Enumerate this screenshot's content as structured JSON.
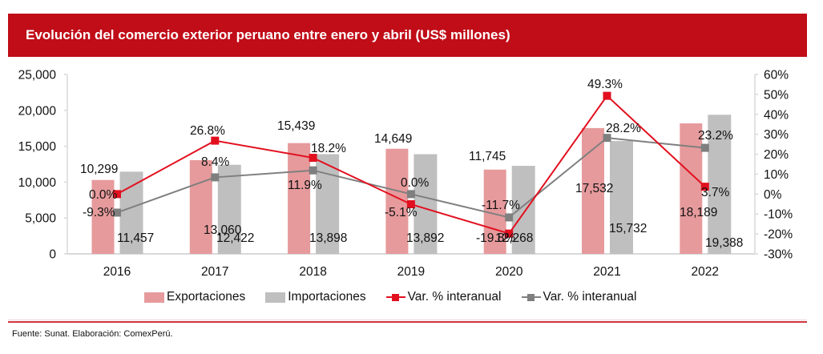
{
  "header": {
    "title": "Evolución del comercio exterior peruano entre enero y abril (US$ millones)"
  },
  "footer": {
    "source": "Fuente: Sunat. Elaboración: ComexPerú."
  },
  "colors": {
    "header_bg": "#C00D18",
    "exports": "#E69A9C",
    "imports": "#BFBFBF",
    "exports_var": "#E2101F",
    "imports_var": "#7F7F7F",
    "rule": "#D2343E"
  },
  "legend": [
    {
      "label": "Exportaciones",
      "kind": "bar",
      "color": "#E69A9C"
    },
    {
      "label": "Importaciones",
      "kind": "bar",
      "color": "#BFBFBF"
    },
    {
      "label": "Var. % interanual",
      "kind": "line",
      "color": "#E2101F"
    },
    {
      "label": "Var. % interanual",
      "kind": "line",
      "color": "#7F7F7F"
    }
  ],
  "chart_data": {
    "type": "bar",
    "title": "Evolución del comercio exterior peruano entre enero y abril (US$ millones)",
    "xlabel": "",
    "ylabel": "",
    "categories": [
      "2016",
      "2017",
      "2018",
      "2019",
      "2020",
      "2021",
      "2022"
    ],
    "ylim": [
      0,
      25000
    ],
    "yticks": [
      0,
      5000,
      10000,
      15000,
      20000,
      25000
    ],
    "ytick_labels": [
      "0",
      "5,000",
      "10,000",
      "15,000",
      "20,000",
      "25,000"
    ],
    "y2lim": [
      -30,
      60
    ],
    "y2ticks": [
      -30,
      -20,
      -10,
      0,
      10,
      20,
      30,
      40,
      50,
      60
    ],
    "y2tick_labels": [
      "-30%",
      "-20%",
      "-10%",
      "0%",
      "10%",
      "20%",
      "30%",
      "40%",
      "50%",
      "60%"
    ],
    "grid": false,
    "legend_position": "bottom",
    "series": [
      {
        "name": "Exportaciones",
        "type": "bar",
        "axis": "left",
        "values": [
          10299,
          13060,
          15439,
          14649,
          11745,
          17532,
          18189
        ],
        "labels": [
          "10,299",
          "13,060",
          "15,439",
          "14,649",
          "11,745",
          "17,532",
          "18,189"
        ]
      },
      {
        "name": "Importaciones",
        "type": "bar",
        "axis": "left",
        "values": [
          11457,
          12422,
          13898,
          13892,
          12268,
          15732,
          19388
        ],
        "labels": [
          "11,457",
          "12,422",
          "13,898",
          "13,892",
          "12,268",
          "15,732",
          "19,388"
        ]
      },
      {
        "name": "Var. % interanual (Exportaciones)",
        "type": "line",
        "axis": "right",
        "values": [
          0.0,
          26.8,
          18.2,
          -5.1,
          -19.8,
          49.3,
          3.7
        ],
        "labels": [
          "0.0%",
          "26.8%",
          "18.2%",
          "-5.1%",
          "-19.8%",
          "49.3%",
          "3.7%"
        ]
      },
      {
        "name": "Var. % interanual (Importaciones)",
        "type": "line",
        "axis": "right",
        "values": [
          -9.3,
          8.4,
          11.9,
          0.0,
          -11.7,
          28.2,
          23.2
        ],
        "labels": [
          "-9.3%",
          "8.4%",
          "11.9%",
          "0.0%",
          "-11.7%",
          "28.2%",
          "23.2%"
        ]
      }
    ]
  }
}
